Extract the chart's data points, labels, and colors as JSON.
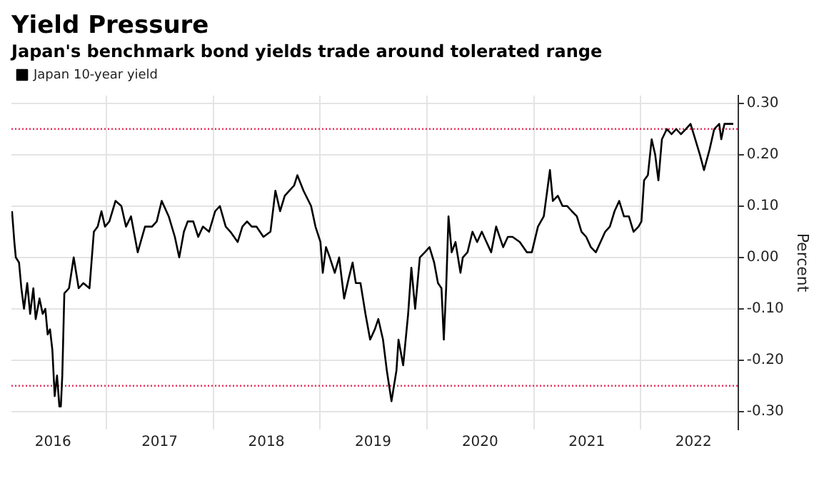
{
  "chart_data": {
    "type": "line",
    "title": "Yield Pressure",
    "subtitle": "Japan's benchmark bond yields trade around tolerated range",
    "ylabel": "Percent",
    "x": [
      "2016-02-12",
      "2016-02-20",
      "2016-02-25",
      "2016-03-07",
      "2016-03-15",
      "2016-03-24",
      "2016-04-04",
      "2016-04-14",
      "2016-04-25",
      "2016-05-03",
      "2016-05-16",
      "2016-05-27",
      "2016-06-05",
      "2016-06-13",
      "2016-06-21",
      "2016-06-29",
      "2016-07-07",
      "2016-07-15",
      "2016-07-23",
      "2016-07-28",
      "2016-08-02",
      "2016-08-09",
      "2016-08-25",
      "2016-09-10",
      "2016-09-27",
      "2016-10-13",
      "2016-11-03",
      "2016-11-18",
      "2016-12-01",
      "2016-12-14",
      "2016-12-26",
      "2017-01-10",
      "2017-01-31",
      "2017-02-20",
      "2017-03-08",
      "2017-03-25",
      "2017-04-17",
      "2017-05-12",
      "2017-06-05",
      "2017-06-21",
      "2017-07-08",
      "2017-08-01",
      "2017-08-22",
      "2017-09-06",
      "2017-09-22",
      "2017-10-05",
      "2017-10-24",
      "2017-11-10",
      "2017-11-26",
      "2017-12-17",
      "2018-01-07",
      "2018-01-23",
      "2018-02-12",
      "2018-02-28",
      "2018-03-25",
      "2018-04-10",
      "2018-04-26",
      "2018-05-12",
      "2018-05-28",
      "2018-06-21",
      "2018-07-15",
      "2018-08-01",
      "2018-08-17",
      "2018-09-02",
      "2018-09-18",
      "2018-10-04",
      "2018-10-15",
      "2018-11-05",
      "2018-12-01",
      "2018-12-16",
      "2019-01-02",
      "2019-01-10",
      "2019-01-21",
      "2019-02-03",
      "2019-02-20",
      "2019-03-07",
      "2019-03-24",
      "2019-04-09",
      "2019-04-22",
      "2019-05-03",
      "2019-05-19",
      "2019-06-05",
      "2019-06-21",
      "2019-07-07",
      "2019-07-19",
      "2019-08-04",
      "2019-08-17",
      "2019-09-02",
      "2019-09-19",
      "2019-09-26",
      "2019-10-12",
      "2019-10-29",
      "2019-11-09",
      "2019-11-22",
      "2019-12-08",
      "2019-12-25",
      "2020-01-10",
      "2020-01-26",
      "2020-02-08",
      "2020-02-20",
      "2020-02-28",
      "2020-03-07",
      "2020-03-15",
      "2020-03-26",
      "2020-04-08",
      "2020-04-25",
      "2020-05-03",
      "2020-05-19",
      "2020-06-05",
      "2020-06-21",
      "2020-07-07",
      "2020-07-23",
      "2020-08-08",
      "2020-08-25",
      "2020-09-18",
      "2020-10-04",
      "2020-10-20",
      "2020-11-14",
      "2020-12-08",
      "2020-12-25",
      "2021-01-15",
      "2021-02-04",
      "2021-02-25",
      "2021-03-07",
      "2021-03-24",
      "2021-04-09",
      "2021-04-25",
      "2021-05-11",
      "2021-05-28",
      "2021-06-13",
      "2021-06-29",
      "2021-07-15",
      "2021-08-01",
      "2021-08-17",
      "2021-09-02",
      "2021-09-18",
      "2021-10-04",
      "2021-10-20",
      "2021-11-05",
      "2021-11-22",
      "2021-12-08",
      "2021-12-25",
      "2022-01-04",
      "2022-01-13",
      "2022-01-26",
      "2022-02-08",
      "2022-02-20",
      "2022-03-03",
      "2022-03-15",
      "2022-04-01",
      "2022-04-17",
      "2022-05-03",
      "2022-05-19",
      "2022-06-05",
      "2022-06-21",
      "2022-07-07",
      "2022-07-23",
      "2022-08-06",
      "2022-08-25",
      "2022-09-10",
      "2022-09-27",
      "2022-10-04",
      "2022-10-15",
      "2022-10-29",
      "2022-11-14"
    ],
    "series": [
      {
        "name": "Japan 10-year yield",
        "color": "#000000",
        "values": [
          0.09,
          0.03,
          0.0,
          -0.01,
          -0.06,
          -0.1,
          -0.05,
          -0.11,
          -0.06,
          -0.12,
          -0.08,
          -0.11,
          -0.1,
          -0.15,
          -0.14,
          -0.18,
          -0.27,
          -0.23,
          -0.29,
          -0.29,
          -0.23,
          -0.07,
          -0.06,
          0.0,
          -0.06,
          -0.05,
          -0.06,
          0.05,
          0.06,
          0.09,
          0.06,
          0.07,
          0.11,
          0.1,
          0.06,
          0.08,
          0.01,
          0.06,
          0.06,
          0.07,
          0.11,
          0.08,
          0.04,
          0.0,
          0.05,
          0.07,
          0.07,
          0.04,
          0.06,
          0.05,
          0.09,
          0.1,
          0.06,
          0.05,
          0.03,
          0.06,
          0.07,
          0.06,
          0.06,
          0.04,
          0.05,
          0.13,
          0.09,
          0.12,
          0.13,
          0.14,
          0.16,
          0.13,
          0.1,
          0.06,
          0.03,
          -0.03,
          0.02,
          0.0,
          -0.03,
          0.0,
          -0.08,
          -0.04,
          -0.01,
          -0.05,
          -0.05,
          -0.11,
          -0.16,
          -0.14,
          -0.12,
          -0.16,
          -0.22,
          -0.28,
          -0.22,
          -0.16,
          -0.21,
          -0.11,
          -0.02,
          -0.1,
          0.0,
          0.01,
          0.02,
          -0.01,
          -0.05,
          -0.06,
          -0.16,
          -0.06,
          0.08,
          0.01,
          0.03,
          -0.03,
          0.0,
          0.01,
          0.05,
          0.03,
          0.05,
          0.03,
          0.01,
          0.06,
          0.02,
          0.04,
          0.04,
          0.03,
          0.01,
          0.01,
          0.06,
          0.08,
          0.17,
          0.11,
          0.12,
          0.1,
          0.1,
          0.09,
          0.08,
          0.05,
          0.04,
          0.02,
          0.01,
          0.03,
          0.05,
          0.06,
          0.09,
          0.11,
          0.08,
          0.08,
          0.05,
          0.06,
          0.07,
          0.15,
          0.16,
          0.23,
          0.2,
          0.15,
          0.23,
          0.25,
          0.24,
          0.25,
          0.24,
          0.25,
          0.26,
          0.23,
          0.2,
          0.17,
          0.21,
          0.25,
          0.26,
          0.23,
          0.26,
          0.26,
          0.26
        ]
      }
    ],
    "xlim": [
      "2016-02-10",
      "2022-12-01"
    ],
    "xticks": [
      {
        "value": "2016-07-01",
        "label": "2016"
      },
      {
        "value": "2017-01-01",
        "label": null
      },
      {
        "value": "2017-07-01",
        "label": "2017"
      },
      {
        "value": "2018-01-01",
        "label": null
      },
      {
        "value": "2018-07-01",
        "label": "2018"
      },
      {
        "value": "2019-01-01",
        "label": null
      },
      {
        "value": "2019-07-01",
        "label": "2019"
      },
      {
        "value": "2020-01-01",
        "label": null
      },
      {
        "value": "2020-07-01",
        "label": "2020"
      },
      {
        "value": "2021-01-01",
        "label": null
      },
      {
        "value": "2021-07-01",
        "label": "2021"
      },
      {
        "value": "2022-01-01",
        "label": null
      },
      {
        "value": "2022-07-01",
        "label": "2022"
      }
    ],
    "ylim": [
      -0.335,
      0.315
    ],
    "yticks": [
      {
        "value": -0.3,
        "label": "-0.30"
      },
      {
        "value": -0.2,
        "label": "-0.20"
      },
      {
        "value": -0.1,
        "label": "-0.10"
      },
      {
        "value": 0,
        "label": "0.00"
      },
      {
        "value": 0.1,
        "label": "0.10"
      },
      {
        "value": 0.2,
        "label": "0.20"
      },
      {
        "value": 0.3,
        "label": "0.30"
      }
    ],
    "ref_lines": [
      {
        "axis": "y",
        "value": 0.25,
        "color": "#e8335e",
        "line_style": "dotted"
      },
      {
        "axis": "y",
        "value": -0.25,
        "color": "#e8335e",
        "line_style": "dotted"
      }
    ],
    "grid": true,
    "legend": "top left",
    "marker": "none",
    "line_style": "solid"
  }
}
